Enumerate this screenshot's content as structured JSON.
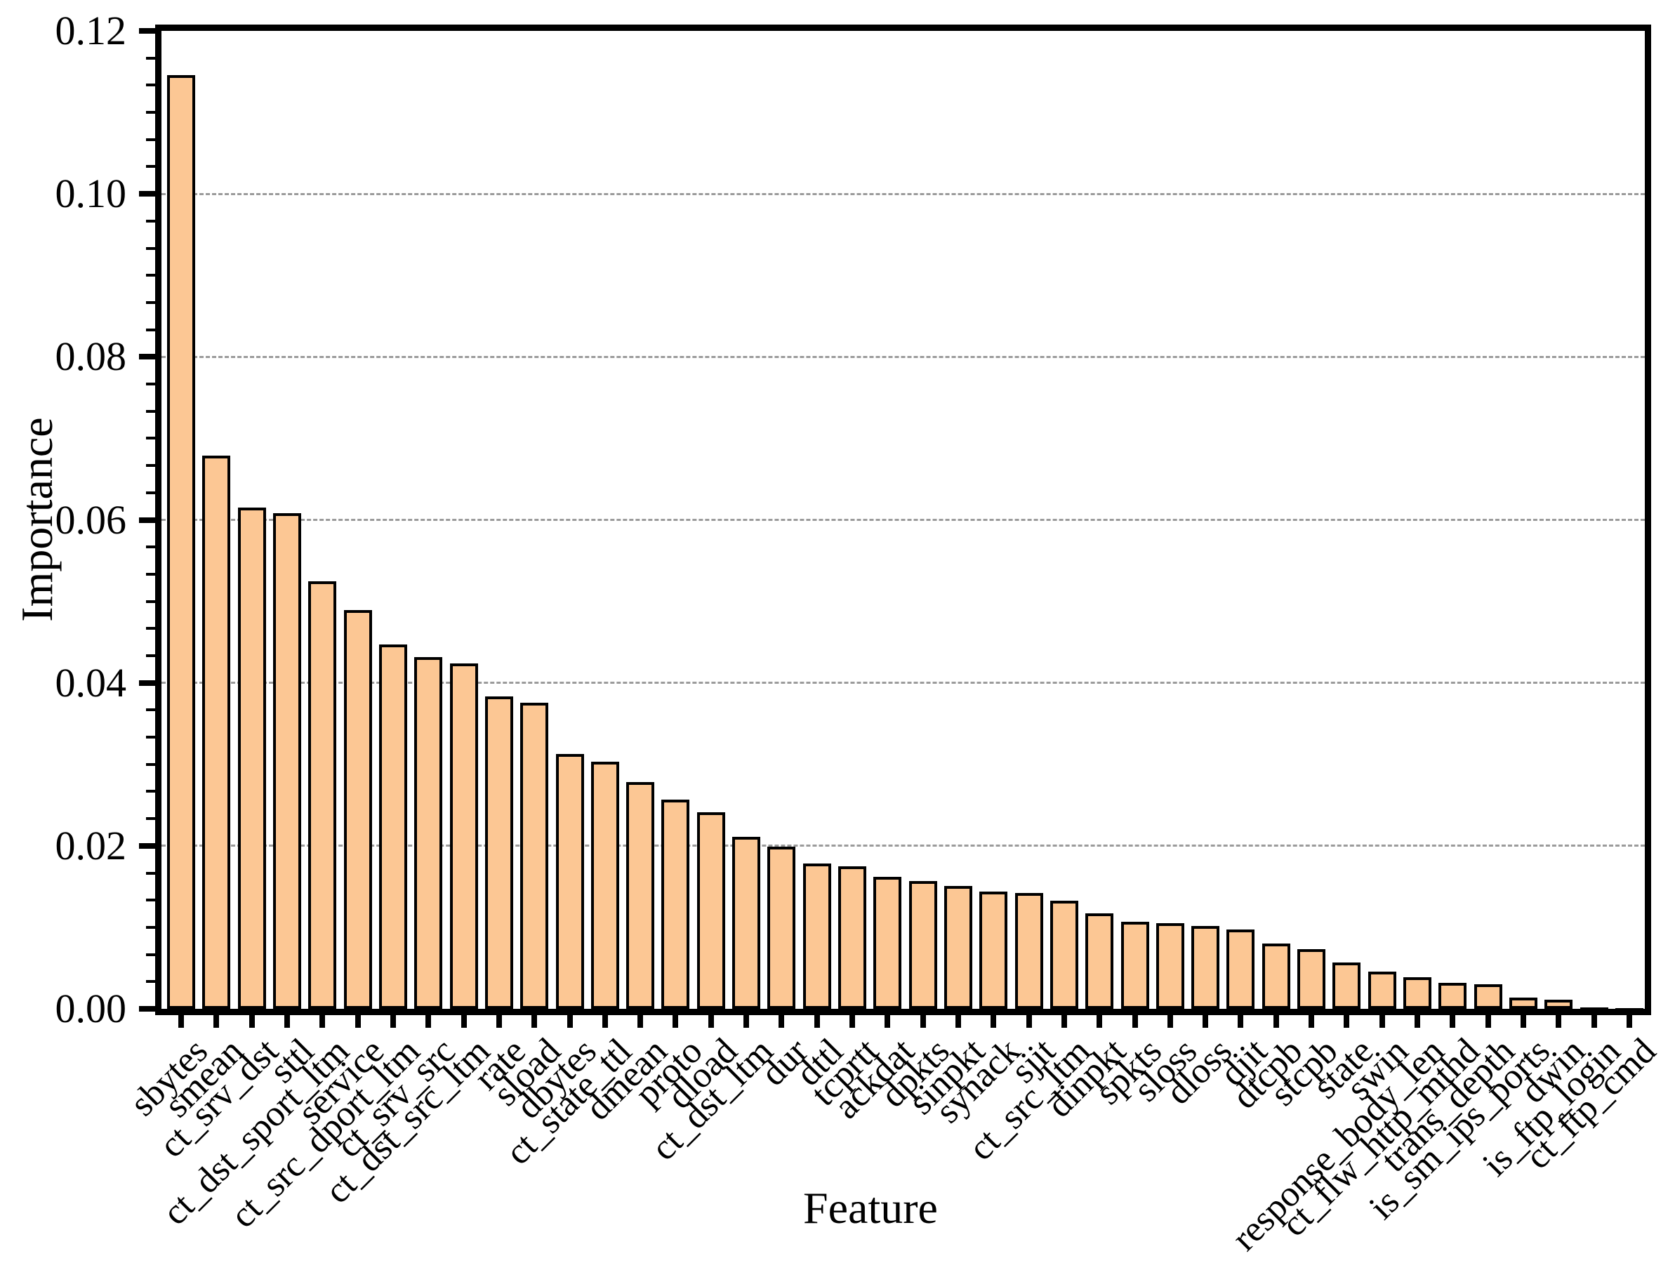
{
  "chart_data": {
    "type": "bar",
    "title": "",
    "xlabel": "Feature",
    "ylabel": "Importance",
    "categories": [
      "sbytes",
      "smean",
      "ct_srv_dst",
      "sttl",
      "ct_dst_sport_ltm",
      "service",
      "ct_src_dport_ltm",
      "ct_srv_src",
      "ct_dst_src_ltm",
      "rate",
      "sload",
      "dbytes",
      "ct_state_ttl",
      "dmean",
      "proto",
      "dload",
      "ct_dst_ltm",
      "dur",
      "dttl",
      "tcprtt",
      "ackdat",
      "dpkts",
      "sinpkt",
      "synack",
      "sjit",
      "ct_src_ltm",
      "dinpkt",
      "spkts",
      "sloss",
      "dloss",
      "djit",
      "dtcpb",
      "stcpb",
      "state",
      "swin",
      "response_body_len",
      "ct_flw_http_mthd",
      "trans_depth",
      "is_sm_ips_ports",
      "dwin",
      "is_ftp_login",
      "ct_ftp_cmd"
    ],
    "values": [
      0.1146,
      0.0679,
      0.0615,
      0.0608,
      0.0525,
      0.0489,
      0.0447,
      0.0432,
      0.0424,
      0.0383,
      0.0376,
      0.0313,
      0.0303,
      0.0278,
      0.0257,
      0.0241,
      0.0211,
      0.0199,
      0.0178,
      0.0175,
      0.0162,
      0.0157,
      0.0151,
      0.0144,
      0.0142,
      0.0133,
      0.0117,
      0.0107,
      0.0105,
      0.0102,
      0.0097,
      0.008,
      0.0073,
      0.0057,
      0.0046,
      0.0039,
      0.0032,
      0.003,
      0.0014,
      0.0011,
      0.0002,
      0.0001
    ],
    "ylim": [
      0.0,
      0.12
    ],
    "yticks": [
      0.0,
      0.02,
      0.04,
      0.06,
      0.08,
      0.1,
      0.12
    ],
    "ytick_labels": [
      "0.00",
      "0.02",
      "0.04",
      "0.06",
      "0.08",
      "0.10",
      "0.12"
    ],
    "y_minor_divisions_per_major": 6,
    "grid": "horizontal dashed at major y ticks",
    "legend": "none",
    "x_tick_rotation_deg": 45,
    "bar_color": "#FCC794",
    "bar_edge_color": "#000000",
    "grid_color": "#9B9B9B",
    "axis_color": "#000000",
    "text_color": "#000000",
    "background_color": "#FFFFFF"
  }
}
